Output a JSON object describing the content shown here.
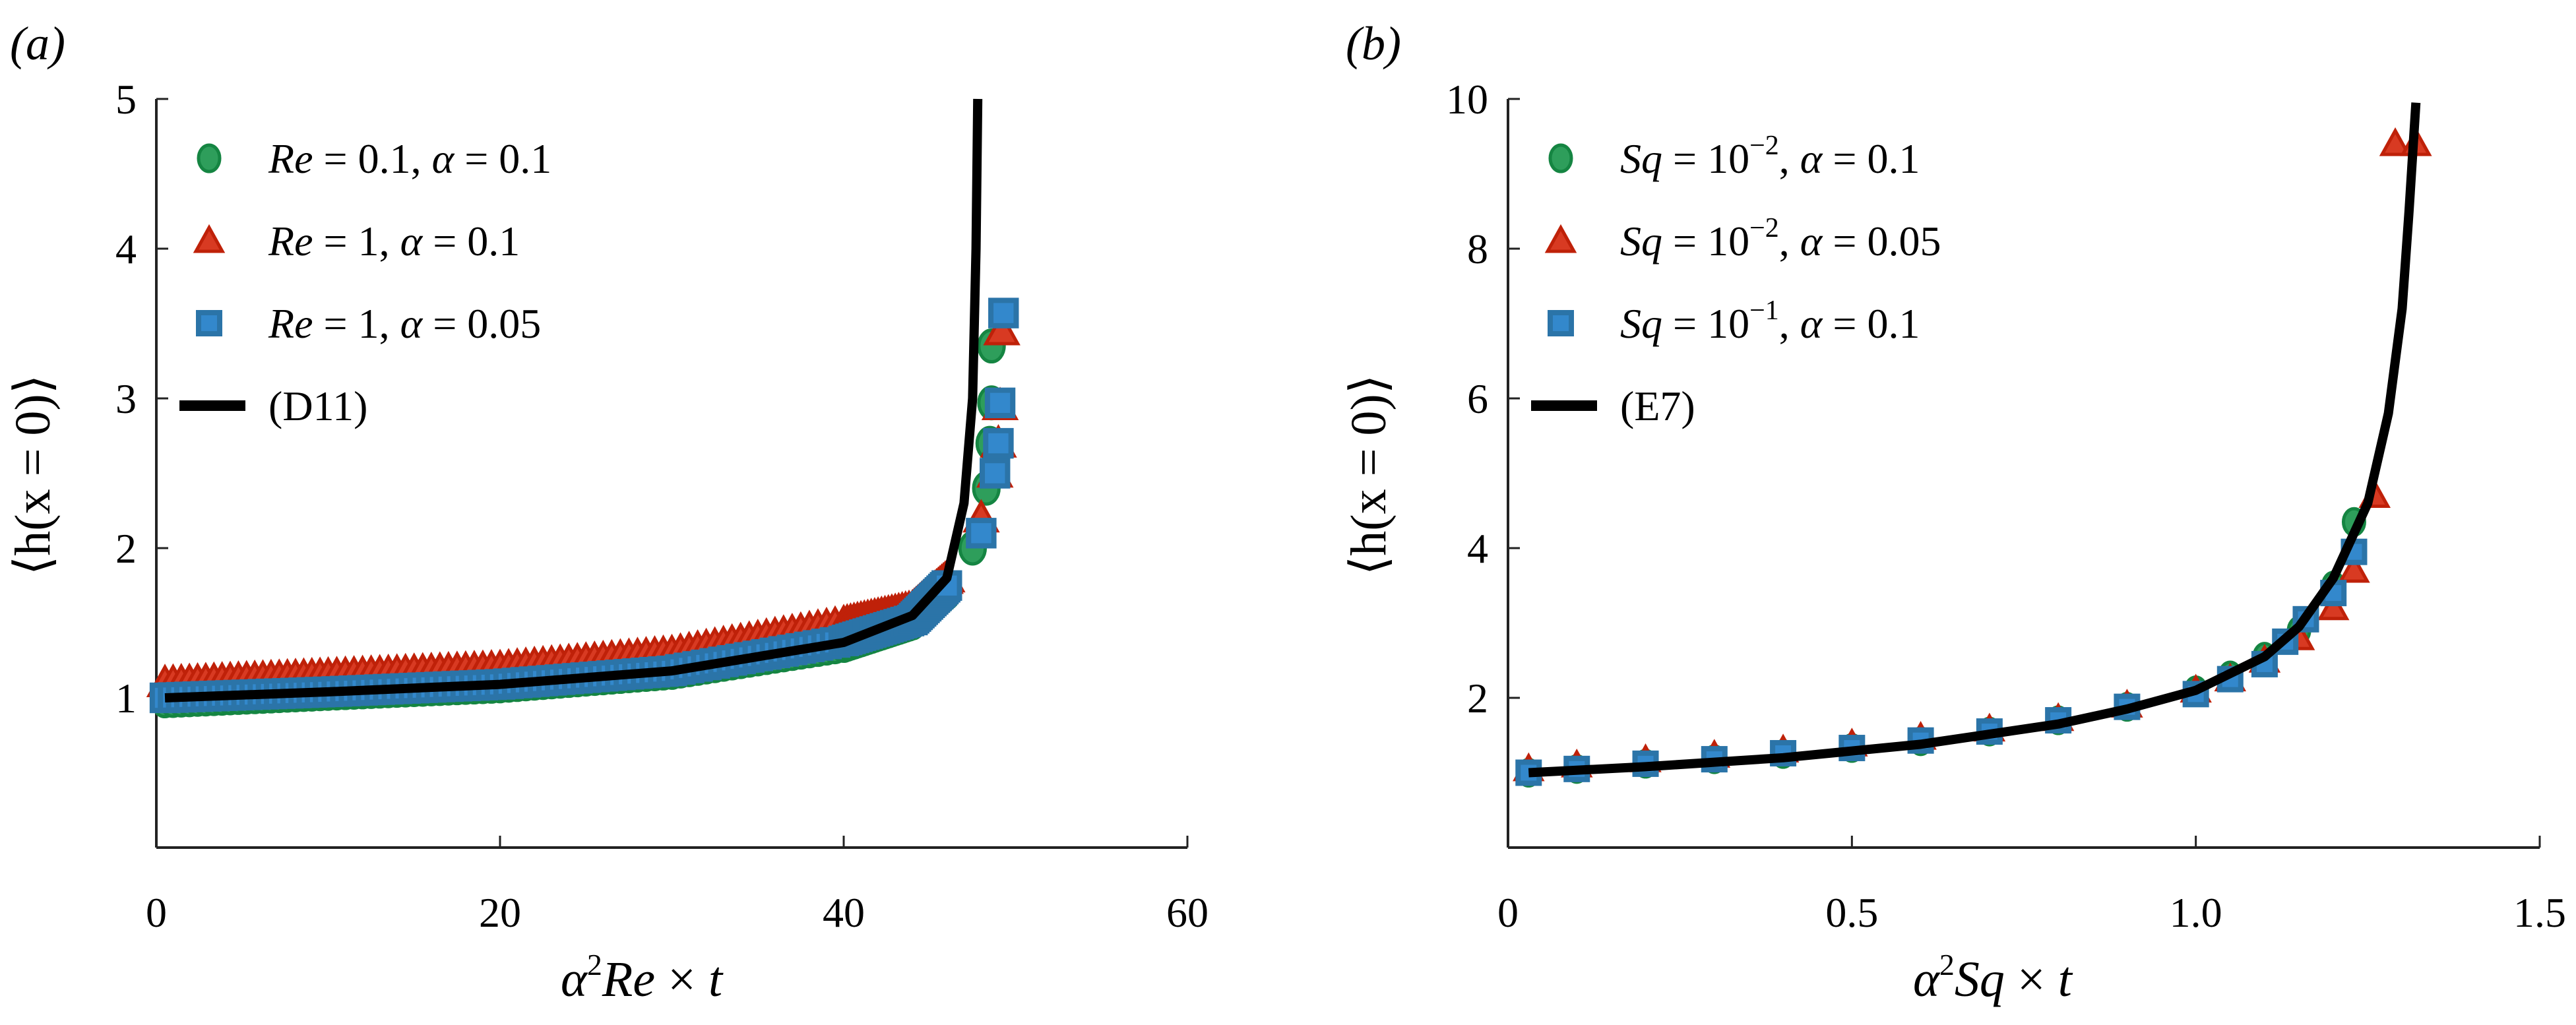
{
  "figure": {
    "panels": [
      {
        "label": "(a)",
        "xlabel": "α²Re × t",
        "xlabel_parts": {
          "alpha": "α",
          "sup": "2",
          "var": "Re",
          "times": " × ",
          "t": "t"
        },
        "ylabel": "⟨h(x = 0)⟩",
        "xticks": [
          "0",
          "20",
          "40",
          "60"
        ],
        "yticks": [
          "1",
          "2",
          "3",
          "4",
          "5"
        ],
        "legend": [
          {
            "marker": "circle",
            "color": "#2e9e5b",
            "text_var": "Re",
            "text_rest": " = 0.1, ",
            "alpha_text": "α",
            "alpha_val": " = 0.1"
          },
          {
            "marker": "triangle",
            "color": "#d83a22",
            "text_var": "Re",
            "text_rest": " = 1, ",
            "alpha_text": "α",
            "alpha_val": " = 0.1"
          },
          {
            "marker": "square",
            "color": "#2b74a8",
            "text_var": "Re",
            "text_rest": " = 1, ",
            "alpha_text": "α",
            "alpha_val": " = 0.05"
          },
          {
            "marker": "line",
            "color": "#000000",
            "text": "(D11)"
          }
        ]
      },
      {
        "label": "(b)",
        "xlabel": "α²Sq × t",
        "xlabel_parts": {
          "alpha": "α",
          "sup": "2",
          "var": "Sq",
          "times": " × ",
          "t": "t"
        },
        "ylabel": "⟨h(x = 0)⟩",
        "xticks": [
          "0",
          "0.5",
          "1.0",
          "1.5"
        ],
        "yticks": [
          "2",
          "4",
          "6",
          "8",
          "10"
        ],
        "legend": [
          {
            "marker": "circle",
            "color": "#2e9e5b",
            "text_var": "Sq",
            "base": " = 10",
            "exp": "−2",
            "alpha_text": "α",
            "alpha_val": " = 0.1"
          },
          {
            "marker": "triangle",
            "color": "#d83a22",
            "text_var": "Sq",
            "base": " = 10",
            "exp": "−2",
            "alpha_text": "α",
            "alpha_val": " = 0.05"
          },
          {
            "marker": "square",
            "color": "#2b74a8",
            "text_var": "Sq",
            "base": " = 10",
            "exp": "−1",
            "alpha_text": "α",
            "alpha_val": " = 0.1"
          },
          {
            "marker": "line",
            "color": "#000000",
            "text": "(E7)"
          }
        ]
      }
    ]
  },
  "chart_data": [
    {
      "type": "scatter",
      "title": "(a)",
      "xlabel": "α²Re × t",
      "ylabel": "⟨h(x = 0)⟩",
      "xlim": [
        0,
        60
      ],
      "ylim": [
        0,
        5
      ],
      "xticks": [
        0,
        20,
        40,
        60
      ],
      "yticks": [
        1,
        2,
        3,
        4,
        5
      ],
      "grid": false,
      "legend_position": "upper left",
      "series": [
        {
          "name": "Re = 0.1, α = 0.1",
          "marker": "circle",
          "color": "#2e9e5b",
          "x": [
            0.5,
            10,
            20,
            30,
            40,
            44,
            46,
            47.5,
            48.3,
            48.5,
            48.6,
            48.6
          ],
          "y": [
            0.98,
            1.03,
            1.08,
            1.17,
            1.35,
            1.5,
            1.7,
            2.0,
            2.4,
            2.7,
            2.97,
            3.35
          ]
        },
        {
          "name": "Re = 1, α = 0.1",
          "marker": "triangle",
          "color": "#d83a22",
          "x": [
            0.5,
            10,
            20,
            30,
            40,
            44,
            46,
            48,
            48.8,
            49.0,
            49.1,
            49.2
          ],
          "y": [
            1.1,
            1.15,
            1.2,
            1.3,
            1.5,
            1.6,
            1.8,
            2.2,
            2.5,
            2.7,
            2.95,
            3.45
          ]
        },
        {
          "name": "Re = 1, α = 0.05",
          "marker": "square",
          "color": "#2b74a8",
          "x": [
            0.5,
            10,
            20,
            30,
            40,
            44,
            46,
            48,
            48.8,
            49.0,
            49.1,
            49.3
          ],
          "y": [
            1.0,
            1.04,
            1.09,
            1.18,
            1.38,
            1.52,
            1.75,
            2.1,
            2.5,
            2.7,
            2.97,
            3.57
          ]
        },
        {
          "name": "(D11)",
          "type": "line",
          "color": "#000000",
          "x": [
            0.5,
            10,
            20,
            30,
            40,
            44,
            46,
            47,
            47.5,
            47.7,
            47.8
          ],
          "y": [
            1.0,
            1.04,
            1.09,
            1.18,
            1.37,
            1.55,
            1.8,
            2.3,
            3.0,
            4.0,
            5.0
          ]
        }
      ]
    },
    {
      "type": "scatter",
      "title": "(b)",
      "xlabel": "α²Sq × t",
      "ylabel": "⟨h(x = 0)⟩",
      "xlim": [
        0,
        1.5
      ],
      "ylim": [
        0,
        10
      ],
      "xticks": [
        0,
        0.5,
        1.0,
        1.5
      ],
      "yticks": [
        2,
        4,
        6,
        8,
        10
      ],
      "grid": false,
      "legend_position": "upper left",
      "series": [
        {
          "name": "Sq = 10^-2, α = 0.1",
          "marker": "circle",
          "color": "#2e9e5b",
          "x": [
            0.03,
            0.1,
            0.2,
            0.3,
            0.4,
            0.5,
            0.6,
            0.7,
            0.8,
            0.9,
            1.0,
            1.05,
            1.1,
            1.15,
            1.2,
            1.23
          ],
          "y": [
            1.0,
            1.05,
            1.12,
            1.18,
            1.25,
            1.33,
            1.42,
            1.55,
            1.7,
            1.88,
            2.1,
            2.3,
            2.55,
            2.9,
            3.5,
            4.35
          ]
        },
        {
          "name": "Sq = 10^-2, α = 0.05",
          "marker": "triangle",
          "color": "#d83a22",
          "x": [
            0.03,
            0.1,
            0.2,
            0.3,
            0.4,
            0.5,
            0.6,
            0.7,
            0.8,
            0.9,
            1.0,
            1.05,
            1.1,
            1.15,
            1.2,
            1.23,
            1.26,
            1.29,
            1.32
          ],
          "y": [
            1.05,
            1.1,
            1.17,
            1.23,
            1.3,
            1.38,
            1.47,
            1.58,
            1.72,
            1.9,
            2.1,
            2.25,
            2.5,
            2.8,
            3.2,
            3.7,
            4.7,
            9.4,
            9.4
          ]
        },
        {
          "name": "Sq = 10^-1, α = 0.1",
          "marker": "square",
          "color": "#2b74a8",
          "x": [
            0.03,
            0.1,
            0.2,
            0.3,
            0.4,
            0.5,
            0.6,
            0.7,
            0.8,
            0.9,
            1.0,
            1.05,
            1.1,
            1.13,
            1.16,
            1.2,
            1.23
          ],
          "y": [
            1.0,
            1.05,
            1.12,
            1.18,
            1.26,
            1.33,
            1.43,
            1.55,
            1.7,
            1.88,
            2.05,
            2.25,
            2.45,
            2.75,
            3.05,
            3.4,
            3.95
          ]
        },
        {
          "name": "(E7)",
          "type": "line",
          "color": "#000000",
          "x": [
            0.03,
            0.2,
            0.4,
            0.6,
            0.8,
            0.9,
            1.0,
            1.1,
            1.15,
            1.2,
            1.25,
            1.28,
            1.3,
            1.31,
            1.32
          ],
          "y": [
            1.0,
            1.08,
            1.2,
            1.38,
            1.65,
            1.85,
            2.1,
            2.55,
            2.95,
            3.6,
            4.6,
            5.8,
            7.2,
            8.5,
            9.95
          ]
        }
      ]
    }
  ]
}
